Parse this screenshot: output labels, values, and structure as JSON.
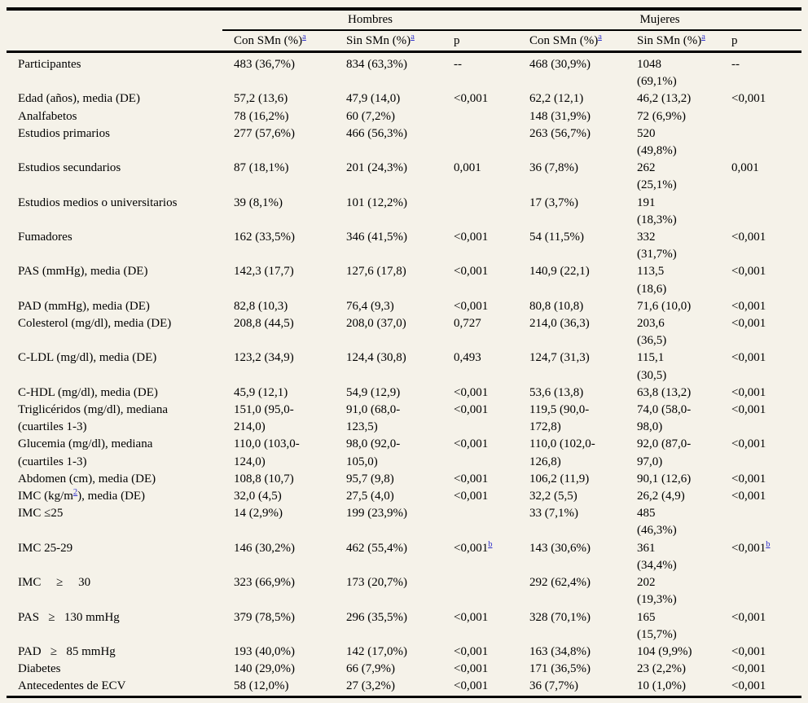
{
  "page": {
    "background": "#f5f2e9"
  },
  "colors": {
    "rule": "#000000",
    "text": "#000000",
    "link": "#3233cb"
  },
  "table": {
    "group_headers": [
      {
        "label": "Hombres"
      },
      {
        "label": "Mujeres"
      }
    ],
    "sub_headers": [
      {
        "label": "Con SMn (%)",
        "sup": "a"
      },
      {
        "label": "Sin SMn (%)",
        "sup": "a"
      },
      {
        "label": "p"
      },
      {
        "label": "Con SMn (%)",
        "sup": "a"
      },
      {
        "label": "Sin SMn (%)",
        "sup": "a"
      },
      {
        "label": "p"
      }
    ],
    "rows": [
      {
        "label": "Participantes",
        "cells": [
          "483 (36,7%)",
          "834 (63,3%)",
          "--",
          "468 (30,9%)",
          "1048\n(69,1%)",
          "--"
        ]
      },
      {
        "label": "Edad (años), media (DE)",
        "cells": [
          "57,2 (13,6)",
          "47,9 (14,0)",
          "<0,001",
          "62,2 (12,1)",
          "46,2 (13,2)",
          "<0,001"
        ]
      },
      {
        "label": "Analfabetos",
        "cells": [
          "78 (16,2%)",
          "60 (7,2%)",
          "",
          "148 (31,9%)",
          "72 (6,9%)",
          ""
        ]
      },
      {
        "label": "Estudios primarios",
        "cells": [
          "277 (57,6%)",
          "466 (56,3%)",
          "",
          "263 (56,7%)",
          "520\n(49,8%)",
          ""
        ]
      },
      {
        "label": "Estudios secundarios",
        "cells": [
          "87 (18,1%)",
          "201 (24,3%)",
          "0,001",
          "36 (7,8%)",
          "262\n(25,1%)",
          "0,001"
        ]
      },
      {
        "label": "Estudios medios o universitarios",
        "cells": [
          "39 (8,1%)",
          "101 (12,2%)",
          "",
          "17 (3,7%)",
          "191\n(18,3%)",
          ""
        ]
      },
      {
        "label": "Fumadores",
        "cells": [
          "162 (33,5%)",
          "346 (41,5%)",
          "<0,001",
          "54 (11,5%)",
          "332\n(31,7%)",
          "<0,001"
        ]
      },
      {
        "label": "PAS (mmHg), media (DE)",
        "cells": [
          "142,3 (17,7)",
          "127,6 (17,8)",
          "<0,001",
          "140,9 (22,1)",
          "113,5\n(18,6)",
          "<0,001"
        ]
      },
      {
        "label": "PAD (mmHg), media (DE)",
        "cells": [
          "82,8 (10,3)",
          "76,4 (9,3)",
          "<0,001",
          "80,8 (10,8)",
          "71,6 (10,0)",
          "<0,001"
        ]
      },
      {
        "label": "Colesterol (mg/dl), media (DE)",
        "cells": [
          "208,8 (44,5)",
          "208,0 (37,0)",
          "0,727",
          "214,0 (36,3)",
          "203,6\n(36,5)",
          "<0,001"
        ]
      },
      {
        "label": "C-LDL (mg/dl), media (DE)",
        "cells": [
          "123,2 (34,9)",
          "124,4 (30,8)",
          "0,493",
          "124,7 (31,3)",
          "115,1\n(30,5)",
          "<0,001"
        ]
      },
      {
        "label": "C-HDL (mg/dl), media (DE)",
        "cells": [
          "45,9 (12,1)",
          "54,9 (12,9)",
          "<0,001",
          "53,6 (13,8)",
          "63,8 (13,2)",
          "<0,001"
        ]
      },
      {
        "label": "Triglicéridos (mg/dl), mediana\n(cuartiles 1-3)",
        "cells": [
          "151,0 (95,0-\n214,0)",
          "91,0 (68,0-\n123,5)",
          "<0,001",
          "119,5 (90,0-\n172,8)",
          "74,0 (58,0-\n98,0)",
          "<0,001"
        ]
      },
      {
        "label": "Glucemia (mg/dl), mediana\n(cuartiles 1-3)",
        "cells": [
          "110,0 (103,0-\n124,0)",
          "98,0 (92,0-\n105,0)",
          "<0,001",
          "110,0 (102,0-\n126,8)",
          "92,0 (87,0-\n97,0)",
          "<0,001"
        ]
      },
      {
        "label": "Abdomen (cm), media (DE)",
        "cells": [
          "108,8 (10,7)",
          "95,7 (9,8)",
          "<0,001",
          "106,2 (11,9)",
          "90,1 (12,6)",
          "<0,001"
        ]
      },
      {
        "label": {
          "pre": "IMC (kg/m",
          "sup": "2",
          "post": "), media (DE)"
        },
        "cells": [
          "32,0 (4,5)",
          "27,5 (4,0)",
          "<0,001",
          "32,2 (5,5)",
          "26,2 (4,9)",
          "<0,001"
        ]
      },
      {
        "label": "IMC ≤25",
        "cells": [
          "14 (2,9%)",
          "199 (23,9%)",
          "",
          "33 (7,1%)",
          "485\n(46,3%)",
          ""
        ]
      },
      {
        "label": "IMC 25-29",
        "cells": [
          "146 (30,2%)",
          "462 (55,4%)",
          {
            "text": "<0,001",
            "sup": "b",
            "middle": true
          },
          "143 (30,6%)",
          "361\n(34,4%)",
          {
            "text": "<0,001",
            "sup": "b",
            "middle": true
          }
        ]
      },
      {
        "label": "IMC  ≥  30",
        "cells": [
          "323 (66,9%)",
          "173 (20,7%)",
          "",
          "292 (62,4%)",
          "202\n(19,3%)",
          ""
        ]
      },
      {
        "label": "PAS  ≥  130 mmHg",
        "cells": [
          "379 (78,5%)",
          "296 (35,5%)",
          "<0,001",
          "328 (70,1%)",
          "165\n(15,7%)",
          "<0,001"
        ]
      },
      {
        "label": "PAD  ≥  85 mmHg",
        "cells": [
          "193 (40,0%)",
          "142 (17,0%)",
          "<0,001",
          "163 (34,8%)",
          "104 (9,9%)",
          "<0,001"
        ]
      },
      {
        "label": "Diabetes",
        "cells": [
          "140 (29,0%)",
          "66 (7,9%)",
          "<0,001",
          "171 (36,5%)",
          "23 (2,2%)",
          "<0,001"
        ]
      },
      {
        "label": "Antecedentes de ECV",
        "cells": [
          "58 (12,0%)",
          "27 (3,2%)",
          "<0,001",
          "36 (7,7%)",
          "10 (1,0%)",
          "<0,001"
        ]
      }
    ]
  }
}
